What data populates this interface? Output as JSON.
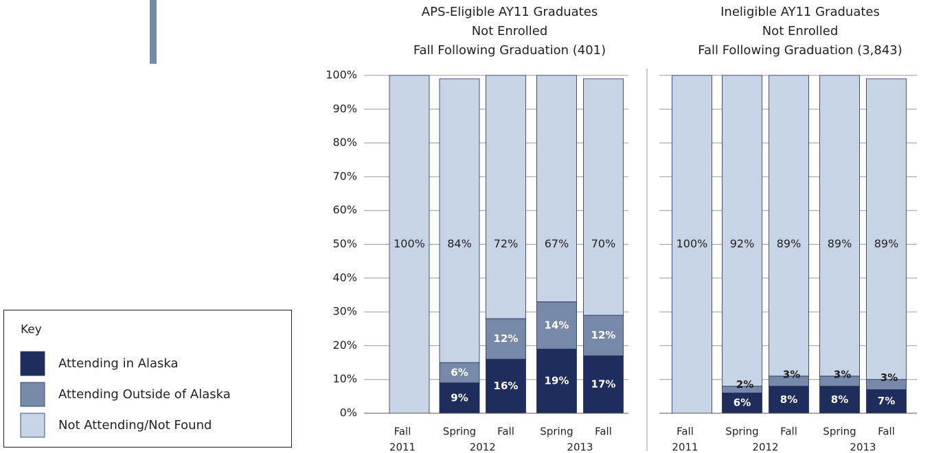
{
  "chart_data": [
    {
      "type": "stacked_bar",
      "title": [
        "APS-Eligible AY11 Graduates",
        "Not Enrolled",
        "Fall Following Graduation (401)"
      ],
      "categories": [
        "Fall",
        "Spring",
        "Fall",
        "Spring",
        "Fall"
      ],
      "x_groups": [
        {
          "label": "2011",
          "size": 1
        },
        {
          "label": "2012",
          "size": 2
        },
        {
          "label": "2013",
          "size": 2
        }
      ],
      "legend_title": "Key",
      "series": [
        {
          "name": "Attending in Alaska",
          "color": "#1f2d5c",
          "values": [
            0,
            9,
            16,
            19,
            17
          ],
          "value_labels": [
            null,
            "9%",
            "16%",
            "19%",
            "17%"
          ]
        },
        {
          "name": "Attending Outside of Alaska",
          "color": "#7689a8",
          "values": [
            0,
            6,
            12,
            14,
            12
          ],
          "value_labels": [
            null,
            "6%",
            "12%",
            "14%",
            "12%"
          ]
        },
        {
          "name": "Not Attending/Not Found",
          "color": "#c6d4e5",
          "values": [
            100,
            84,
            72,
            67,
            70
          ],
          "value_labels": [
            "100%",
            "84%",
            "72%",
            "67%",
            "70%"
          ]
        }
      ],
      "ylim": [
        0,
        100
      ],
      "yticks": [
        {
          "value": 0,
          "label": "0%"
        },
        {
          "value": 10,
          "label": "10%"
        },
        {
          "value": 20,
          "label": "20%"
        },
        {
          "value": 30,
          "label": "30%"
        },
        {
          "value": 40,
          "label": "40%"
        },
        {
          "value": 50,
          "label": "50%"
        },
        {
          "value": 60,
          "label": "60%"
        },
        {
          "value": 70,
          "label": "70%"
        },
        {
          "value": 80,
          "label": "80%"
        },
        {
          "value": 90,
          "label": "90%"
        },
        {
          "value": 100,
          "label": "100%"
        }
      ],
      "grid": true
    },
    {
      "type": "stacked_bar",
      "title": [
        "Ineligible AY11 Graduates",
        "Not Enrolled",
        "Fall Following Graduation (3,843)"
      ],
      "categories": [
        "Fall",
        "Spring",
        "Fall",
        "Spring",
        "Fall"
      ],
      "x_groups": [
        {
          "label": "2011",
          "size": 1
        },
        {
          "label": "2012",
          "size": 2
        },
        {
          "label": "2013",
          "size": 2
        }
      ],
      "series": [
        {
          "name": "Attending in Alaska",
          "color": "#1f2d5c",
          "values": [
            0,
            6,
            8,
            8,
            7
          ],
          "value_labels": [
            null,
            "6%",
            "8%",
            "8%",
            "7%"
          ]
        },
        {
          "name": "Attending Outside of Alaska",
          "color": "#7689a8",
          "values": [
            0,
            2,
            3,
            3,
            3
          ],
          "value_labels": [
            null,
            "2%",
            "3%",
            "3%",
            "3%"
          ]
        },
        {
          "name": "Not Attending/Not Found",
          "color": "#c6d4e5",
          "values": [
            100,
            92,
            89,
            89,
            89
          ],
          "value_labels": [
            "100%",
            "92%",
            "89%",
            "89%",
            "89%"
          ]
        }
      ],
      "ylim": [
        0,
        100
      ],
      "yticks": [
        0,
        10,
        20,
        30,
        40,
        50,
        60,
        70,
        80,
        90,
        100
      ],
      "grid": true
    }
  ]
}
